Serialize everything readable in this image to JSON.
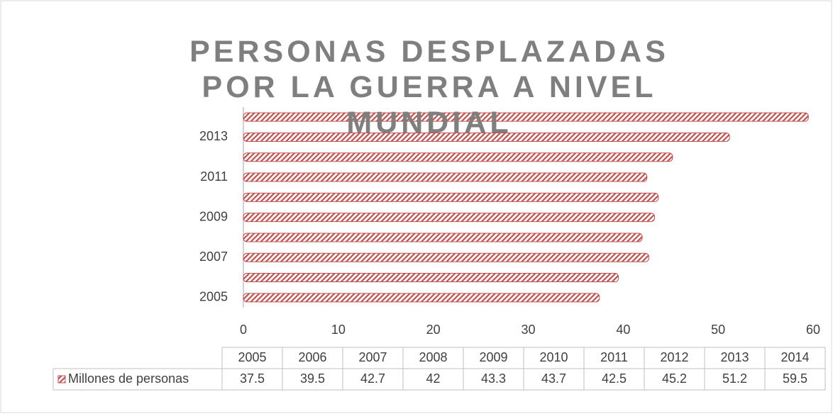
{
  "chart_data": {
    "type": "bar",
    "orientation": "horizontal",
    "title": "PERSONAS DESPLAZADAS POR LA GUERRA A NIVEL MUNDIAL",
    "categories": [
      "2005",
      "2006",
      "2007",
      "2008",
      "2009",
      "2010",
      "2011",
      "2012",
      "2013",
      "2014"
    ],
    "series": [
      {
        "name": "Millones de personas",
        "color": "#c0504d",
        "values": [
          37.5,
          39.5,
          42.7,
          42,
          43.3,
          43.7,
          42.5,
          45.2,
          51.2,
          59.5
        ]
      }
    ],
    "xlim": [
      0,
      60
    ],
    "xticks": [
      0,
      10,
      20,
      30,
      40,
      50,
      60
    ],
    "grid": false,
    "data_table": true
  }
}
